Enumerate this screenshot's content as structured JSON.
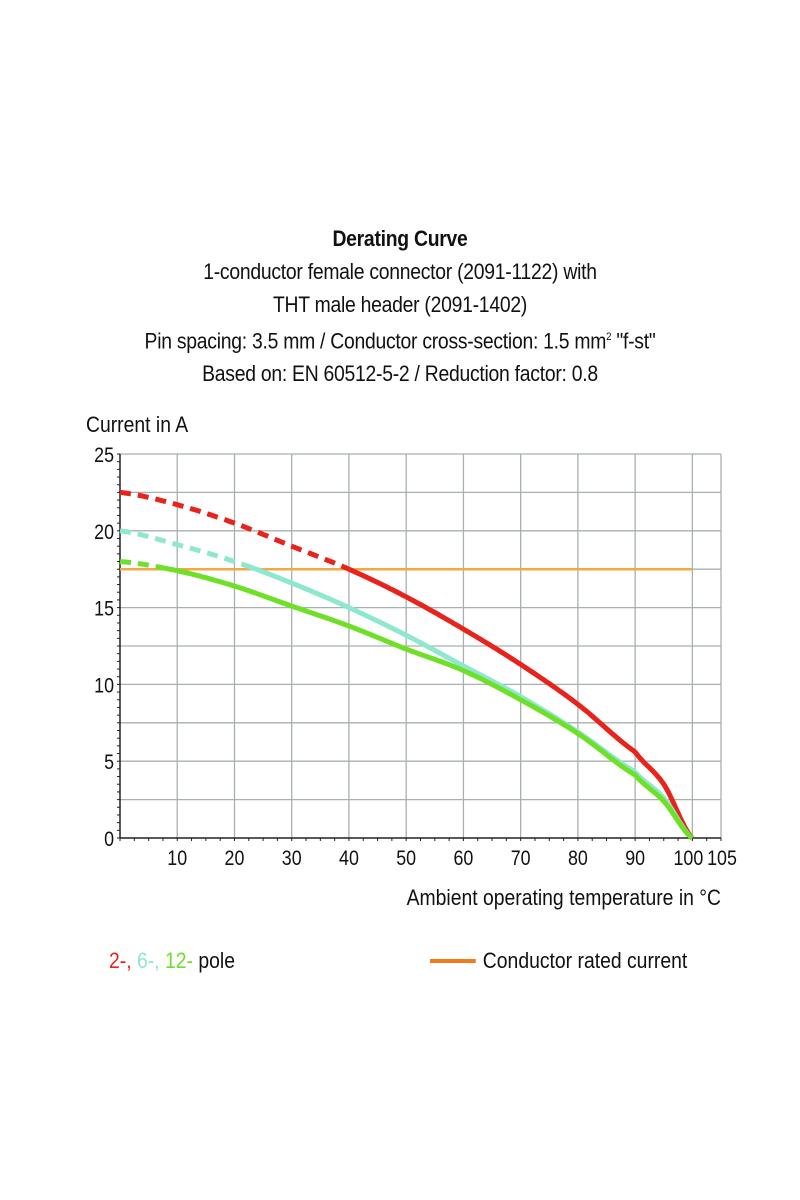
{
  "titles": {
    "title": "Derating Curve",
    "line1": "1-conductor female connector (2091-1122) with",
    "line2": "THT male header (2091-1402)",
    "line3_pre": "Pin spacing: 3.5 mm / Conductor cross-section: 1.5 mm",
    "line3_sup": "2",
    "line3_post": " \"f-st\"",
    "line4": "Based on: EN 60512-5-2 / Reduction factor: 0.8"
  },
  "legend": {
    "pole_labels": [
      "2-,",
      "6-,",
      "12-"
    ],
    "pole_suffix": "pole",
    "rated_label": "Conductor rated current"
  },
  "colors": {
    "red": "#e8231b",
    "cyan": "#8ee8d0",
    "green": "#6ee027",
    "orange": "#f5a742",
    "legend_orange": "#f07a1c",
    "grid": "#a8b0b0",
    "axis": "#222222"
  },
  "chart_data": {
    "type": "line",
    "title": "Derating Curve",
    "xlabel": "Ambient operating temperature in °C",
    "ylabel": "Current in A",
    "xlim": [
      0,
      105
    ],
    "ylim": [
      0,
      25
    ],
    "grid": true,
    "legend_position": "bottom",
    "x_ticks": [
      10,
      20,
      30,
      40,
      50,
      60,
      70,
      80,
      90,
      100,
      105
    ],
    "y_ticks": [
      0,
      5,
      10,
      15,
      20,
      25
    ],
    "x": [
      0,
      10,
      20,
      30,
      40,
      50,
      60,
      70,
      80,
      90,
      95,
      100
    ],
    "series": [
      {
        "name": "2-pole",
        "color": "#e8231b",
        "dashed_until": 40,
        "values": [
          22.5,
          21.7,
          20.5,
          19.0,
          17.5,
          15.7,
          13.6,
          11.3,
          8.7,
          5.6,
          3.5,
          0
        ]
      },
      {
        "name": "6-pole",
        "color": "#8ee8d0",
        "dashed_until": 22,
        "values": [
          20.0,
          19.1,
          18.0,
          16.6,
          15.0,
          13.2,
          11.2,
          9.2,
          6.9,
          4.3,
          2.6,
          0
        ]
      },
      {
        "name": "12-pole",
        "color": "#6ee027",
        "dashed_until": 8,
        "values": [
          18.0,
          17.4,
          16.4,
          15.1,
          13.8,
          12.3,
          10.9,
          9.0,
          6.8,
          4.1,
          2.4,
          0
        ]
      },
      {
        "name": "Conductor rated current",
        "color": "#f5a742",
        "constant": 17.5,
        "x_range": [
          0,
          100
        ]
      }
    ]
  }
}
